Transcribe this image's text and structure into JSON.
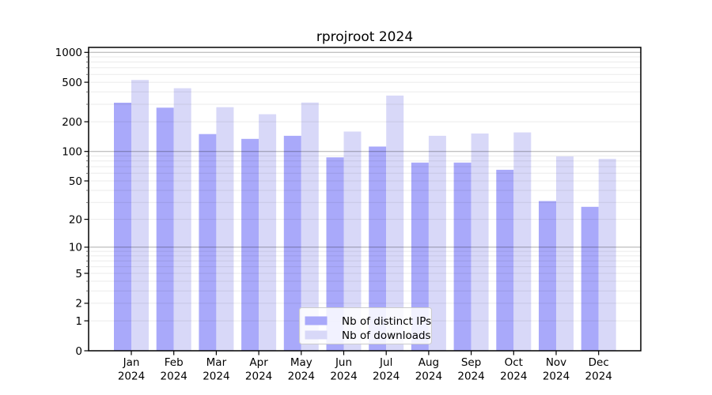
{
  "chart_data": {
    "type": "bar",
    "title": "rprojroot 2024",
    "months": [
      "Jan",
      "Feb",
      "Mar",
      "Apr",
      "May",
      "Jun",
      "Jul",
      "Aug",
      "Sep",
      "Oct",
      "Nov",
      "Dec"
    ],
    "year": "2024",
    "series": [
      {
        "name": "Nb of distinct IPs",
        "key": "distinct-ips",
        "color": "#a9a9fa",
        "values": [
          311,
          277,
          150,
          134,
          144,
          87,
          112,
          77,
          77,
          65,
          31,
          27
        ]
      },
      {
        "name": "Nb of downloads",
        "key": "downloads",
        "color": "#d8d8f8",
        "values": [
          528,
          435,
          280,
          238,
          312,
          159,
          367,
          144,
          152,
          156,
          89,
          84
        ]
      }
    ],
    "y_axis": {
      "scale": "log1p",
      "tick_labels": [
        0,
        1,
        2,
        5,
        10,
        20,
        50,
        100,
        200,
        500,
        1000
      ],
      "major_gridlines": [
        10,
        100,
        1000
      ],
      "ylim": [
        0,
        1122
      ],
      "grid": "on"
    },
    "legend": {
      "position": "lower center"
    },
    "background_color": "#ffffff"
  }
}
